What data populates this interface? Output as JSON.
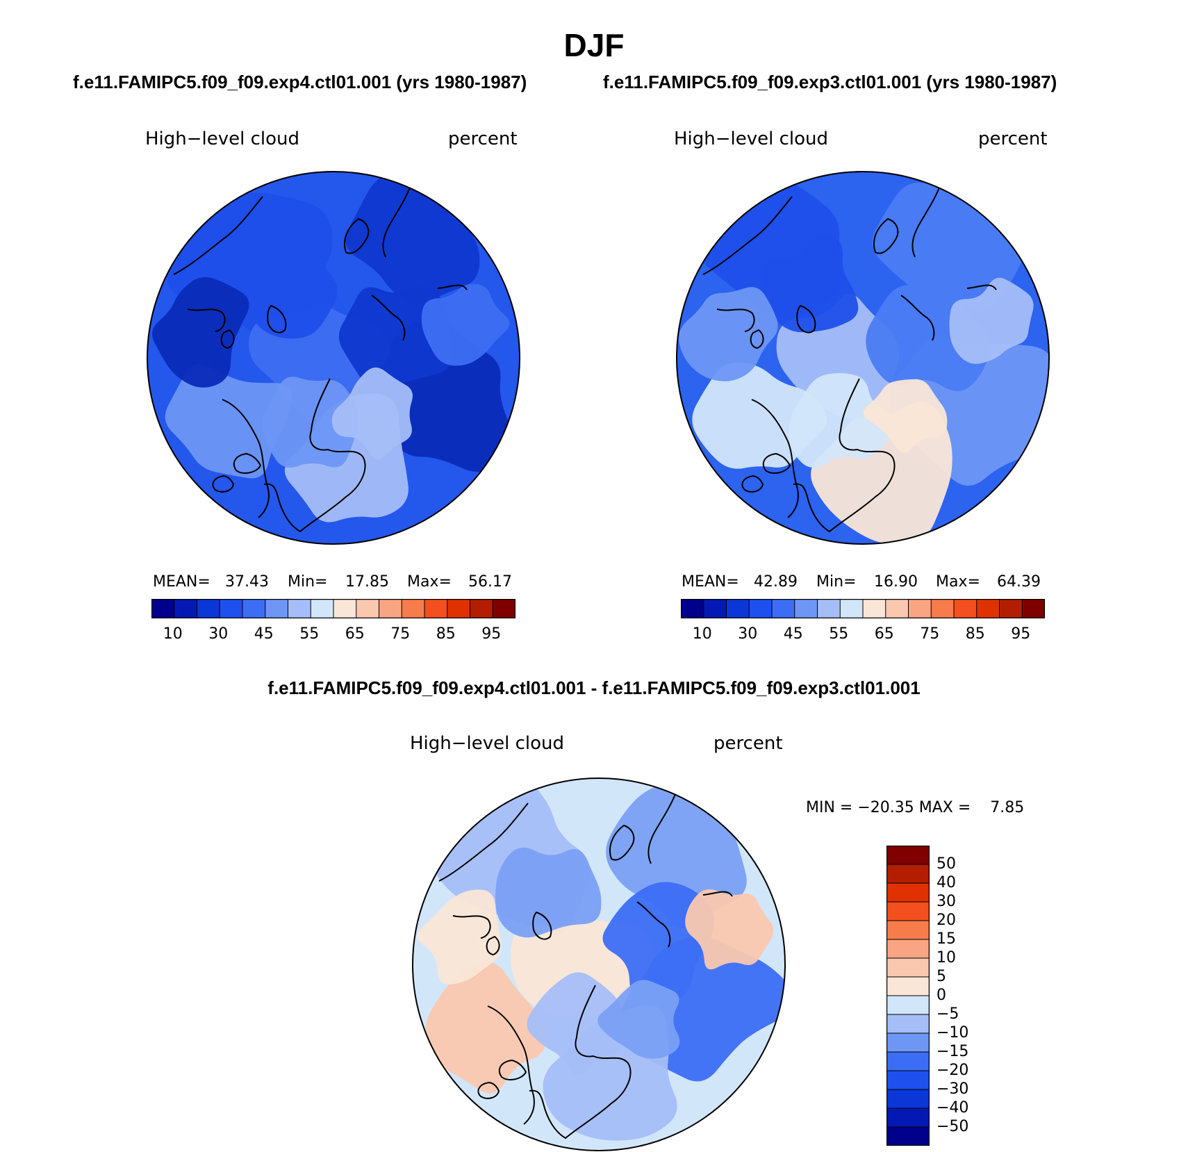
{
  "title": "DJF",
  "panels": [
    {
      "case_title": "f.e11.FAMIPC5.f09_f09.exp4.ctl01.001 (yrs 1980-1987)",
      "left_label": "High−level cloud",
      "right_label": "percent",
      "stats": {
        "mean_label": "MEAN=",
        "mean": "37.43",
        "min_label": "Min=",
        "min": "17.85",
        "max_label": "Max=",
        "max": "56.17"
      }
    },
    {
      "case_title": "f.e11.FAMIPC5.f09_f09.exp3.ctl01.001 (yrs 1980-1987)",
      "left_label": "High−level cloud",
      "right_label": "percent",
      "stats": {
        "mean_label": "MEAN=",
        "mean": "42.89",
        "min_label": "Min=",
        "min": "16.90",
        "max_label": "Max=",
        "max": "64.39"
      }
    }
  ],
  "diff_panel": {
    "title": "f.e11.FAMIPC5.f09_f09.exp4.ctl01.001 - f.e11.FAMIPC5.f09_f09.exp3.ctl01.001",
    "left_label": "High−level cloud",
    "right_label": "percent",
    "minmax": "MIN = −20.35 MAX =    7.85"
  },
  "colorbar_case": {
    "colors": [
      "#00008c",
      "#0419b4",
      "#0a37d6",
      "#1e50f0",
      "#3c6ef5",
      "#6e96f5",
      "#a5bef8",
      "#d2e6fa",
      "#fae6d7",
      "#fac8af",
      "#f9a482",
      "#f77c4b",
      "#f44f1e",
      "#e03200",
      "#b41e00",
      "#800000"
    ],
    "tick_labels": [
      "10",
      "30",
      "45",
      "55",
      "65",
      "75",
      "85",
      "95"
    ]
  },
  "colorbar_diff": {
    "colors": [
      "#800000",
      "#b41e00",
      "#e03200",
      "#f44f1e",
      "#f77c4b",
      "#f9a482",
      "#fac8af",
      "#fae6d7",
      "#d2e6fa",
      "#a5bef8",
      "#6e96f5",
      "#3c6ef5",
      "#1e50f0",
      "#0a37d6",
      "#0419b4",
      "#00008c"
    ],
    "tick_labels": [
      "50",
      "40",
      "30",
      "20",
      "15",
      "10",
      "5",
      "0",
      "−5",
      "−10",
      "−15",
      "−20",
      "−30",
      "−40",
      "−50"
    ]
  },
  "maps": {
    "case1": {
      "base": "#2457ec",
      "patches": [
        "#1f4fea",
        "#0f38cf",
        "#0a2bb8",
        "#3d6ef2",
        "#6e96f5",
        "#a5bef8"
      ]
    },
    "case2": {
      "base": "#2c63ef",
      "patches": [
        "#1f4fea",
        "#4a7cf3",
        "#6e96f5",
        "#a5bef8",
        "#d2e6fa",
        "#fae6d7"
      ]
    },
    "diff": {
      "base": "#d2e6fa",
      "patches": [
        "#a5bef8",
        "#7aa0f4",
        "#3c6ef5",
        "#fae6d7",
        "#fac8af"
      ]
    }
  }
}
